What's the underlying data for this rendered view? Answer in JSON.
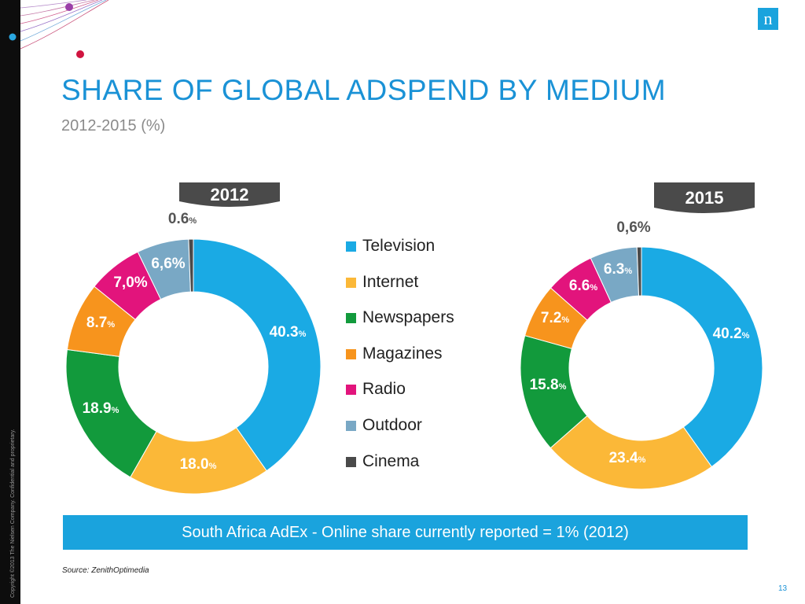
{
  "page": {
    "title": "SHARE OF GLOBAL ADSPEND BY MEDIUM",
    "subtitle": "2012-2015 (%)",
    "banner_text": "South Africa AdEx - Online share currently reported = 1% (2012)",
    "source": "Source: ZenithOptimedia",
    "page_number": "13",
    "copyright": "Copyright ©2013 The Nielsen Company. Confidential and proprietary.",
    "logo_letter": "n",
    "logo_icon": "nielsen-logo-icon"
  },
  "colors": {
    "accent": "#1a92d6",
    "banner": "#1aa3dd",
    "sidebar": "#0d0d0d",
    "year_tab": "#4a4a4a"
  },
  "chart_data": [
    {
      "type": "pie",
      "style": "donut",
      "title": "2012",
      "categories": [
        "Television",
        "Internet",
        "Newspapers",
        "Magazines",
        "Radio",
        "Outdoor",
        "Cinema"
      ],
      "values": [
        40.3,
        18.0,
        18.9,
        8.7,
        7.0,
        6.6,
        0.6
      ],
      "labels": [
        {
          "num": "40.3",
          "pct": "%"
        },
        {
          "num": "18.0",
          "pct": "%"
        },
        {
          "num": "18.9",
          "pct": "%"
        },
        {
          "num": "8.7",
          "pct": "%"
        },
        {
          "num": "7,0%",
          "pct": ""
        },
        {
          "num": "6,6%",
          "pct": ""
        },
        {
          "num": "0.6",
          "pct": "%"
        }
      ],
      "colors": [
        "#1aaae4",
        "#fbb838",
        "#129a3c",
        "#f7941d",
        "#e2147c",
        "#79a8c5",
        "#4a4a4a"
      ]
    },
    {
      "type": "pie",
      "style": "donut",
      "title": "2015",
      "categories": [
        "Television",
        "Internet",
        "Newspapers",
        "Magazines",
        "Radio",
        "Outdoor",
        "Cinema"
      ],
      "values": [
        40.2,
        23.4,
        15.8,
        7.2,
        6.6,
        6.3,
        0.6
      ],
      "labels": [
        {
          "num": "40.2",
          "pct": "%"
        },
        {
          "num": "23.4",
          "pct": "%"
        },
        {
          "num": "15.8",
          "pct": "%"
        },
        {
          "num": "7.2",
          "pct": "%"
        },
        {
          "num": "6.6",
          "pct": "%"
        },
        {
          "num": "6.3",
          "pct": "%"
        },
        {
          "num": "0,6%",
          "pct": ""
        }
      ],
      "colors": [
        "#1aaae4",
        "#fbb838",
        "#129a3c",
        "#f7941d",
        "#e2147c",
        "#79a8c5",
        "#4a4a4a"
      ]
    }
  ],
  "legend": [
    {
      "label": "Television",
      "color": "#1aaae4"
    },
    {
      "label": "Internet",
      "color": "#fbb838"
    },
    {
      "label": "Newspapers",
      "color": "#129a3c"
    },
    {
      "label": "Magazines",
      "color": "#f7941d"
    },
    {
      "label": "Radio",
      "color": "#e2147c"
    },
    {
      "label": "Outdoor",
      "color": "#79a8c5"
    },
    {
      "label": "Cinema",
      "color": "#4a4a4a"
    }
  ]
}
